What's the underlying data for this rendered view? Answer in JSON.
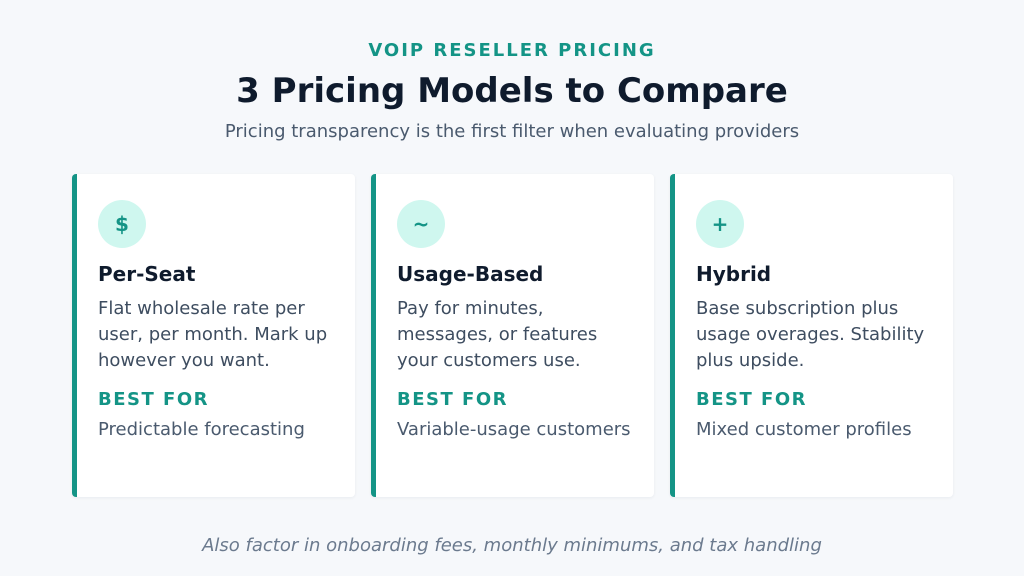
{
  "header": {
    "eyebrow": "VOIP RESELLER PRICING",
    "title": "3 Pricing Models to Compare",
    "subtitle": "Pricing transparency is the first filter when evaluating providers"
  },
  "cards": [
    {
      "icon_glyph": "$",
      "icon_name": "dollar-icon",
      "title": "Per-Seat",
      "description": "Flat wholesale rate per user, per month. Mark up however you want.",
      "best_for_label": "BEST FOR",
      "best_for": "Predictable forecasting"
    },
    {
      "icon_glyph": "~",
      "icon_name": "tilde-icon",
      "title": "Usage-Based",
      "description": "Pay for minutes, messages, or features your customers use.",
      "best_for_label": "BEST FOR",
      "best_for": "Variable-usage customers"
    },
    {
      "icon_glyph": "+",
      "icon_name": "plus-icon",
      "title": "Hybrid",
      "description": "Base subscription plus usage overages. Stability plus upside.",
      "best_for_label": "BEST FOR",
      "best_for": "Mixed customer profiles"
    }
  ],
  "footer": {
    "note": "Also factor in onboarding fees, monthly minimums, and tax handling"
  },
  "colors": {
    "accent": "#149486",
    "icon_bg": "#cff7ef",
    "title": "#0f1b2d",
    "background": "#f6f8fb"
  }
}
